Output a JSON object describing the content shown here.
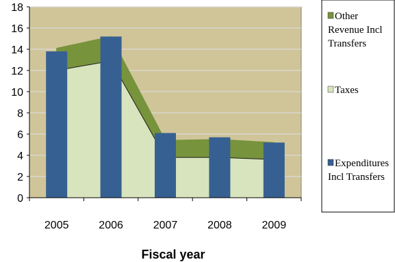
{
  "chart_data": {
    "type": "area",
    "title": "",
    "xlabel": "Fiscal year",
    "ylabel": "",
    "categories": [
      "2005",
      "2006",
      "2007",
      "2008",
      "2009"
    ],
    "ylim": [
      0,
      18
    ],
    "y_ticks": [
      "0",
      "2",
      "4",
      "6",
      "8",
      "10",
      "12",
      "14",
      "16",
      "18"
    ],
    "grid": true,
    "plot_background": "#d0c599",
    "series": [
      {
        "name": "Other Revenue Incl Transfers",
        "kind": "stacked-area",
        "values": [
          2.1,
          2.3,
          1.6,
          1.7,
          1.6
        ],
        "color": "#77933c"
      },
      {
        "name": "Taxes",
        "kind": "stacked-area",
        "values": [
          12.0,
          12.9,
          3.8,
          3.8,
          3.6
        ],
        "color": "#d7e4bd"
      },
      {
        "name": "Expenditures Incl Transfers",
        "kind": "bar",
        "values": [
          13.8,
          15.2,
          6.1,
          5.7,
          5.2
        ],
        "color": "#376092"
      }
    ],
    "legend": {
      "position": "right",
      "entries": [
        {
          "label": "Other Revenue Incl Transfers",
          "lines": [
            "Other",
            "Revenue Incl",
            "Transfers"
          ],
          "color": "#77933c"
        },
        {
          "label": "Taxes",
          "lines": [
            "Taxes"
          ],
          "color": "#d7e4bd"
        },
        {
          "label": "Expenditures Incl Transfers",
          "lines": [
            "Expenditures",
            "Incl Transfers"
          ],
          "color": "#376092"
        }
      ]
    }
  }
}
